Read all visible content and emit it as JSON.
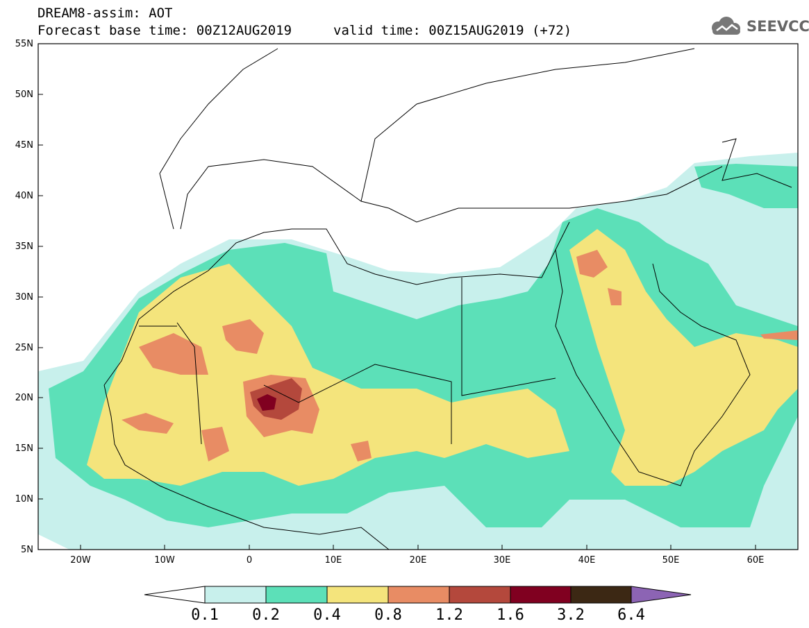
{
  "header": {
    "title_line1": "DREAM8-assim: AOT",
    "title_line2": "Forecast base time: 00Z12AUG2019",
    "valid_time": "valid time: 00Z15AUG2019 (+72)",
    "logo_text": "SEEVCCC",
    "logo_icon": "cloud-icon"
  },
  "map": {
    "lon_range": [
      -25,
      65
    ],
    "lat_range": [
      5,
      55
    ],
    "lat_labels": [
      "55N",
      "50N",
      "45N",
      "40N",
      "35N",
      "30N",
      "25N",
      "20N",
      "15N",
      "10N",
      "5N"
    ],
    "lon_labels": [
      "20W",
      "10W",
      "0",
      "10E",
      "20E",
      "30E",
      "40E",
      "50E",
      "60E"
    ]
  },
  "colorbar": {
    "levels": [
      "0.1",
      "0.2",
      "0.4",
      "0.8",
      "1.2",
      "1.6",
      "3.2",
      "6.4"
    ],
    "colors": [
      "#c8f0ec",
      "#5ce0b8",
      "#f4e47c",
      "#e88c64",
      "#b4483c",
      "#800020",
      "#3c2814",
      "#8c64b4"
    ],
    "under_color": "#ffffff"
  }
}
